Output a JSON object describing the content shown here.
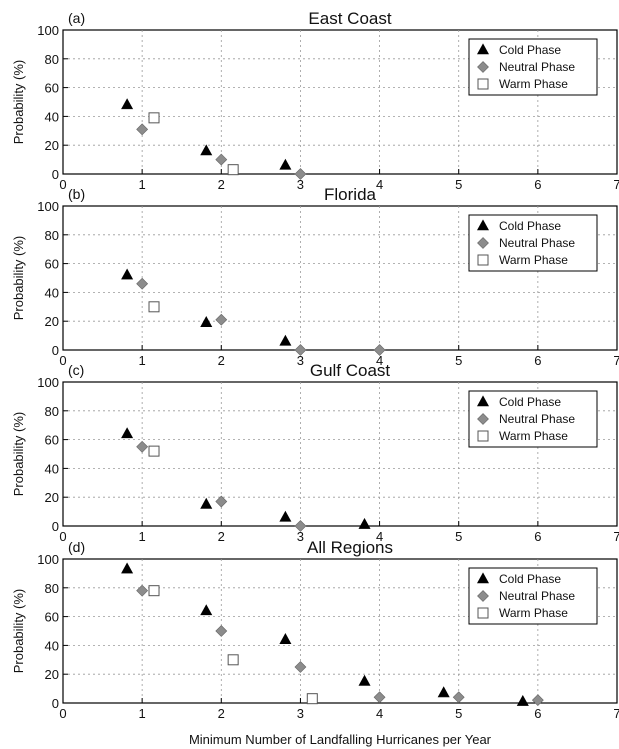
{
  "xlabel": "Minimum Number of Landfalling Hurricanes per Year",
  "chart_data": [
    {
      "type": "scatter",
      "panel_label": "(a)",
      "title": "East Coast",
      "ylabel": "Probability (%)",
      "xlim": [
        0,
        7
      ],
      "ylim": [
        0,
        100
      ],
      "xticks": [
        0,
        1,
        2,
        3,
        4,
        5,
        6,
        7
      ],
      "yticks": [
        0,
        20,
        40,
        60,
        80,
        100
      ],
      "grid": true,
      "legend_position": "top-right",
      "series": [
        {
          "name": "Cold Phase",
          "marker": "triangle",
          "color": "#000000",
          "x": [
            1,
            2,
            3
          ],
          "y": [
            48,
            16,
            6
          ]
        },
        {
          "name": "Neutral Phase",
          "marker": "diamond",
          "color": "#8c8c8c",
          "x": [
            1,
            2,
            3
          ],
          "y": [
            31,
            10,
            0
          ]
        },
        {
          "name": "Warm Phase",
          "marker": "square",
          "color": "#ffffff",
          "x": [
            1,
            2
          ],
          "y": [
            39,
            3
          ]
        }
      ]
    },
    {
      "type": "scatter",
      "panel_label": "(b)",
      "title": "Florida",
      "ylabel": "Probability (%)",
      "xlim": [
        0,
        7
      ],
      "ylim": [
        0,
        100
      ],
      "xticks": [
        0,
        1,
        2,
        3,
        4,
        5,
        6,
        7
      ],
      "yticks": [
        0,
        20,
        40,
        60,
        80,
        100
      ],
      "grid": true,
      "legend_position": "top-right",
      "series": [
        {
          "name": "Cold Phase",
          "marker": "triangle",
          "color": "#000000",
          "x": [
            1,
            2,
            3
          ],
          "y": [
            52,
            19,
            6
          ]
        },
        {
          "name": "Neutral Phase",
          "marker": "diamond",
          "color": "#8c8c8c",
          "x": [
            1,
            2,
            3,
            4
          ],
          "y": [
            46,
            21,
            0,
            0
          ]
        },
        {
          "name": "Warm Phase",
          "marker": "square",
          "color": "#ffffff",
          "x": [
            1
          ],
          "y": [
            30
          ]
        }
      ]
    },
    {
      "type": "scatter",
      "panel_label": "(c)",
      "title": "Gulf Coast",
      "ylabel": "Probability (%)",
      "xlim": [
        0,
        7
      ],
      "ylim": [
        0,
        100
      ],
      "xticks": [
        0,
        1,
        2,
        3,
        4,
        5,
        6,
        7
      ],
      "yticks": [
        0,
        20,
        40,
        60,
        80,
        100
      ],
      "grid": true,
      "legend_position": "top-right",
      "series": [
        {
          "name": "Cold Phase",
          "marker": "triangle",
          "color": "#000000",
          "x": [
            1,
            2,
            3,
            4
          ],
          "y": [
            64,
            15,
            6,
            1
          ]
        },
        {
          "name": "Neutral Phase",
          "marker": "diamond",
          "color": "#8c8c8c",
          "x": [
            1,
            2,
            3
          ],
          "y": [
            55,
            17,
            0
          ]
        },
        {
          "name": "Warm Phase",
          "marker": "square",
          "color": "#ffffff",
          "x": [
            1
          ],
          "y": [
            52
          ]
        }
      ]
    },
    {
      "type": "scatter",
      "panel_label": "(d)",
      "title": "All Regions",
      "ylabel": "Probability (%)",
      "xlim": [
        0,
        7
      ],
      "ylim": [
        0,
        100
      ],
      "xticks": [
        0,
        1,
        2,
        3,
        4,
        5,
        6,
        7
      ],
      "yticks": [
        0,
        20,
        40,
        60,
        80,
        100
      ],
      "grid": true,
      "legend_position": "top-right",
      "series": [
        {
          "name": "Cold Phase",
          "marker": "triangle",
          "color": "#000000",
          "x": [
            1,
            2,
            3,
            4,
            5,
            6
          ],
          "y": [
            93,
            64,
            44,
            15,
            7,
            1
          ]
        },
        {
          "name": "Neutral Phase",
          "marker": "diamond",
          "color": "#8c8c8c",
          "x": [
            1,
            2,
            3,
            4,
            5,
            6
          ],
          "y": [
            78,
            50,
            25,
            4,
            4,
            2
          ]
        },
        {
          "name": "Warm Phase",
          "marker": "square",
          "color": "#ffffff",
          "x": [
            1,
            2,
            3
          ],
          "y": [
            78,
            30,
            3
          ]
        }
      ]
    }
  ]
}
